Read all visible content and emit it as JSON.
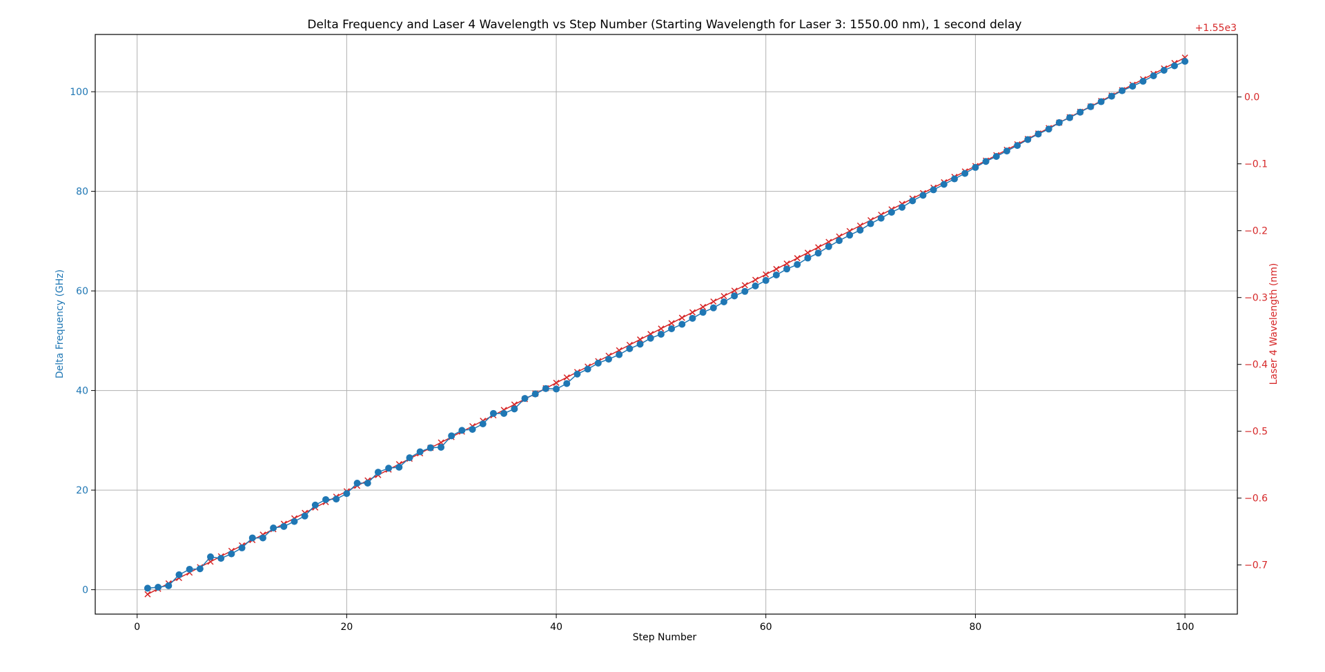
{
  "colors": {
    "left_axis": "#1f77b4",
    "right_axis": "#d62728",
    "grid": "#b0b0b0",
    "text": "#000000"
  },
  "chart_data": {
    "type": "line",
    "title": "Delta Frequency and Laser 4 Wavelength vs Step Number (Starting Wavelength for Laser 3: 1550.00 nm), 1 second delay",
    "xlabel": "Step Number",
    "ylabel": "Delta Frequency (GHz)",
    "ylabel_right": "Laser 4 Wavelength (nm)",
    "right_axis_offset_label": "+1.55e3",
    "xlim": [
      -4,
      105
    ],
    "ylim": [
      -4.9,
      111.5
    ],
    "ylim_right": [
      -0.7735,
      0.0935
    ],
    "xticks": [
      0,
      20,
      40,
      60,
      80,
      100
    ],
    "yticks": [
      0,
      20,
      40,
      60,
      80,
      100
    ],
    "yticks_right": [
      -0.7,
      -0.6,
      -0.5,
      -0.4,
      -0.3,
      -0.2,
      -0.1,
      0.0
    ],
    "grid": true,
    "series": [
      {
        "axis": "left",
        "marker": "circle",
        "color": "#1f77b4",
        "x": [
          1,
          2,
          3,
          4,
          5,
          6,
          7,
          8,
          9,
          10,
          11,
          12,
          13,
          14,
          15,
          16,
          17,
          18,
          19,
          20,
          21,
          22,
          23,
          24,
          25,
          26,
          27,
          28,
          29,
          30,
          31,
          32,
          33,
          34,
          35,
          36,
          37,
          38,
          39,
          40,
          41,
          42,
          43,
          44,
          45,
          46,
          47,
          48,
          49,
          50,
          51,
          52,
          53,
          54,
          55,
          56,
          57,
          58,
          59,
          60,
          61,
          62,
          63,
          64,
          65,
          66,
          67,
          68,
          69,
          70,
          71,
          72,
          73,
          74,
          75,
          76,
          77,
          78,
          79,
          80,
          81,
          82,
          83,
          84,
          85,
          86,
          87,
          88,
          89,
          90,
          91,
          92,
          93,
          94,
          95,
          96,
          97,
          98,
          99,
          100
        ],
        "values": [
          0.3,
          0.5,
          0.8,
          3.0,
          4.1,
          4.2,
          6.6,
          6.3,
          7.2,
          8.4,
          10.4,
          10.4,
          12.4,
          12.7,
          13.7,
          14.8,
          17.0,
          18.1,
          18.2,
          19.3,
          21.4,
          21.4,
          23.6,
          24.4,
          24.6,
          26.5,
          27.7,
          28.5,
          28.6,
          30.9,
          32.0,
          32.2,
          33.3,
          35.4,
          35.4,
          36.3,
          38.4,
          39.3,
          40.4,
          40.3,
          41.4,
          43.3,
          44.3,
          45.5,
          46.3,
          47.2,
          48.4,
          49.3,
          50.5,
          51.3,
          52.4,
          53.3,
          54.5,
          55.7,
          56.6,
          57.8,
          59.0,
          59.9,
          61.0,
          62.1,
          63.2,
          64.4,
          65.3,
          66.6,
          67.6,
          68.9,
          70.1,
          71.2,
          72.2,
          73.5,
          74.6,
          75.8,
          76.8,
          78.1,
          79.2,
          80.3,
          81.4,
          82.5,
          83.6,
          84.8,
          86.0,
          87.0,
          88.1,
          89.2,
          90.4,
          91.5,
          92.5,
          93.8,
          94.8,
          95.9,
          97.0,
          98.0,
          99.1,
          100.2,
          101.1,
          102.1,
          103.2,
          104.3,
          105.2,
          106.1
        ]
      },
      {
        "axis": "right",
        "marker": "x",
        "color": "#d62728",
        "x_start": 1,
        "x_end": 100,
        "values_start": -0.7438,
        "values_end": 0.0589
      }
    ]
  }
}
